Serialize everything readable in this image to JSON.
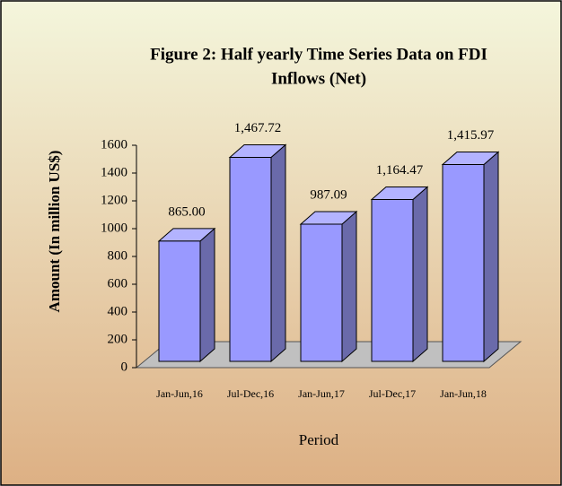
{
  "chart_data": {
    "type": "bar3d",
    "title": "Figure 2: Half yearly Time Series Data on FDI",
    "subtitle": "Inflows (Net)",
    "y_label": "Amount  (In million US$)",
    "x_label": "Period",
    "categories": [
      "Jan-Jun,16",
      "Jul-Dec,16",
      "Jan-Jun,17",
      "Jul-Dec,17",
      "Jan-Jun,18"
    ],
    "values": [
      865,
      1467.72,
      987.09,
      1164.47,
      1415.97
    ],
    "value_labels": [
      "865.00",
      "1,467.72",
      "987.09",
      "1,164.47",
      "1,415.97"
    ],
    "color": "#9999ff",
    "ylim": [
      0,
      1600
    ],
    "yticks": [
      0,
      200,
      400,
      600,
      800,
      1000,
      1200,
      1400,
      1600
    ]
  }
}
